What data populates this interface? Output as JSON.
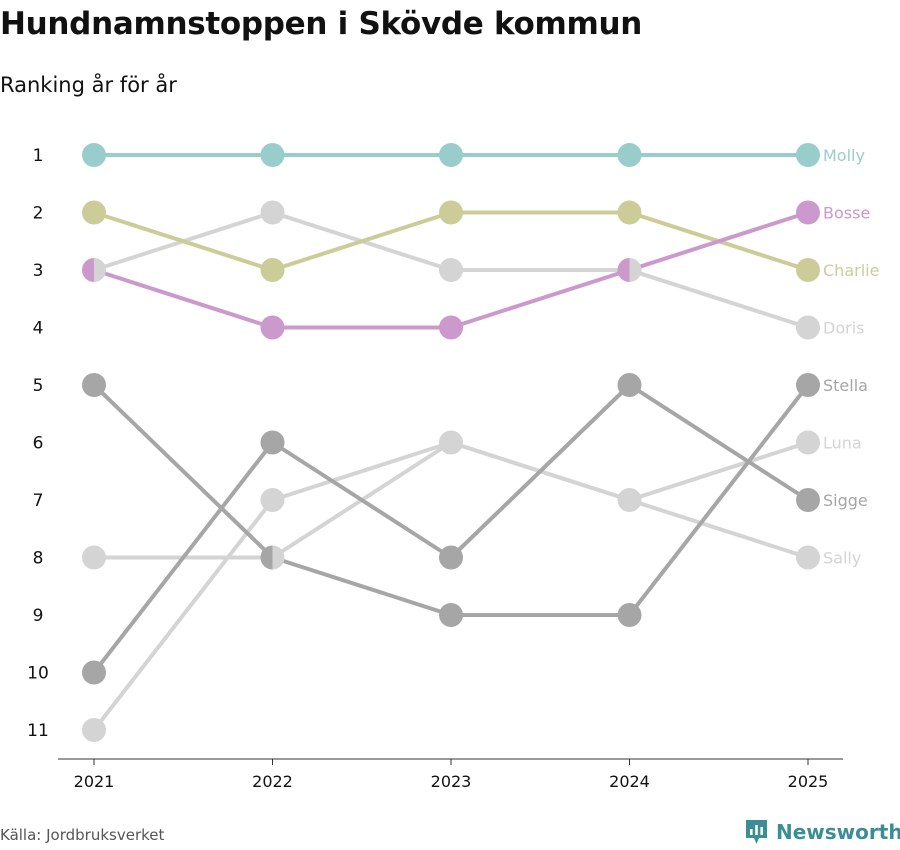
{
  "title": "Hundnamnstoppen i Skövde kommun",
  "subtitle": "Ranking år för år",
  "source": "Källa: Jordbruksverket",
  "brand": {
    "name": "Newsworthy",
    "icon": "bar-chart-icon",
    "color": "#3a8f96"
  },
  "chart_data": {
    "type": "line",
    "kind": "bump",
    "categories": [
      "2021",
      "2022",
      "2023",
      "2024",
      "2025"
    ],
    "y_ticks": [
      "1",
      "2",
      "3",
      "4",
      "5",
      "6",
      "7",
      "8",
      "9",
      "10",
      "11"
    ],
    "ylim": [
      1,
      11
    ],
    "y_inverted": true,
    "series": [
      {
        "name": "Molly",
        "color": "#99cdcb",
        "values": [
          1,
          1,
          1,
          1,
          1
        ]
      },
      {
        "name": "Bosse",
        "color": "#cc99cd",
        "values": [
          3,
          4,
          4,
          3,
          2
        ]
      },
      {
        "name": "Charlie",
        "color": "#cccc99",
        "values": [
          2,
          3,
          2,
          2,
          3
        ]
      },
      {
        "name": "Doris",
        "color": "#d4d4d4",
        "values": [
          3,
          2,
          3,
          3,
          4
        ]
      },
      {
        "name": "Stella",
        "color": "#a6a6a6",
        "values": [
          5,
          8,
          9,
          9,
          5
        ]
      },
      {
        "name": "Luna",
        "color": "#d4d4d4",
        "values": [
          11,
          7,
          6,
          7,
          6
        ]
      },
      {
        "name": "Sigge",
        "color": "#a6a6a6",
        "values": [
          10,
          6,
          8,
          5,
          7
        ]
      },
      {
        "name": "Sally",
        "color": "#d4d4d4",
        "values": [
          8,
          8,
          6,
          7,
          8
        ]
      }
    ]
  }
}
